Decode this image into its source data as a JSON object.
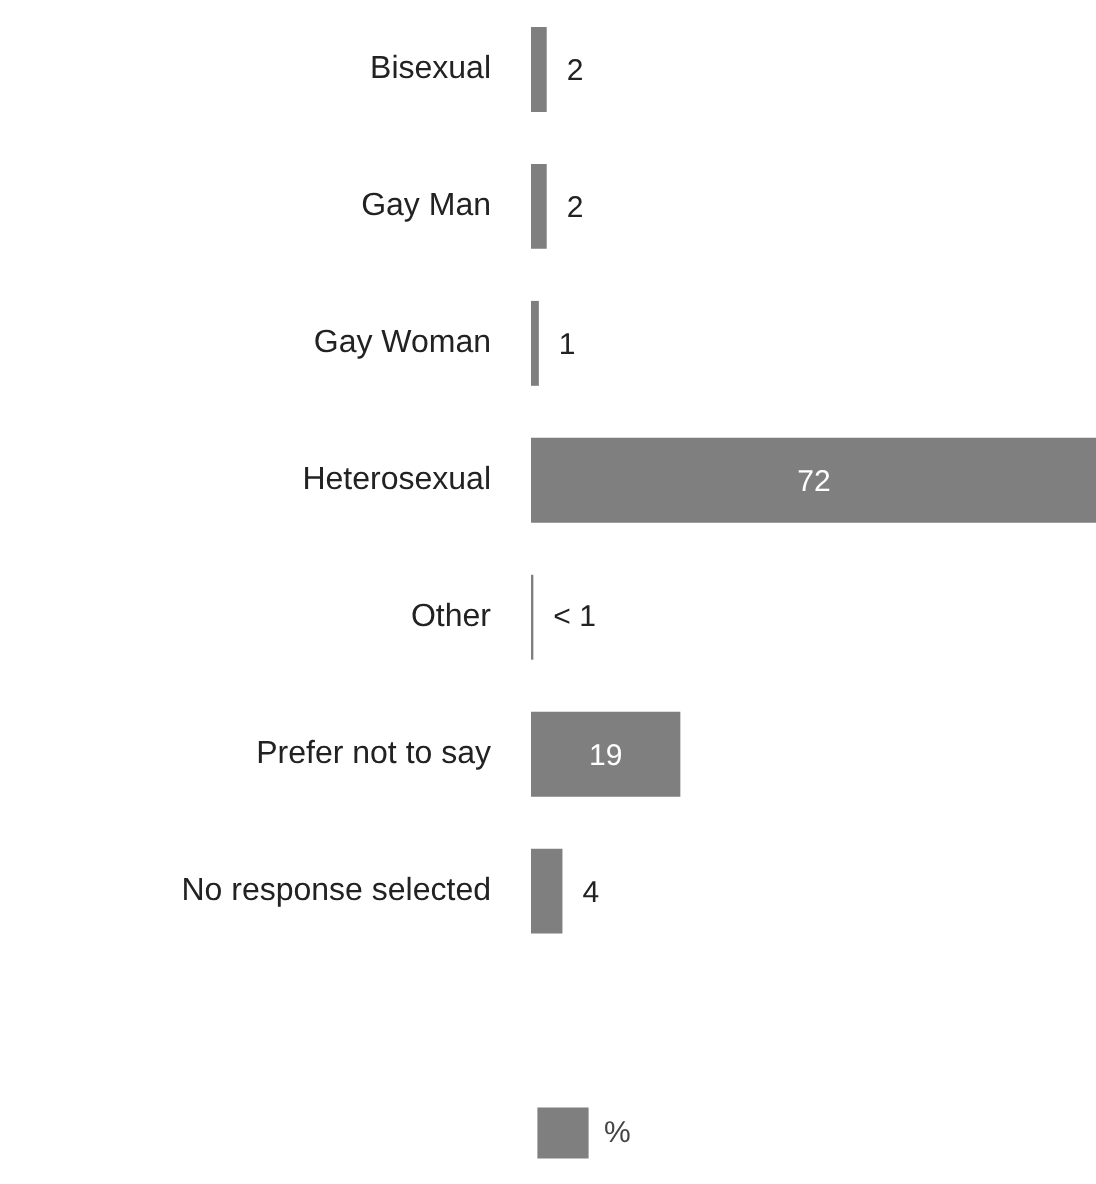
{
  "chart_data": {
    "type": "bar",
    "orientation": "horizontal",
    "categories": [
      "Bisexual",
      "Gay Man",
      "Gay Woman",
      "Heterosexual",
      "Other",
      "Prefer not to say",
      "No response selected"
    ],
    "series": [
      {
        "name": "%",
        "color": "#7f7f7f",
        "values": [
          2,
          2,
          1,
          72,
          0.3,
          19,
          4
        ],
        "value_labels": [
          "2",
          "2",
          "1",
          "72",
          "< 1",
          "19",
          "4"
        ]
      }
    ],
    "grid": false,
    "legend": "bottom",
    "tick_labels": "y"
  }
}
